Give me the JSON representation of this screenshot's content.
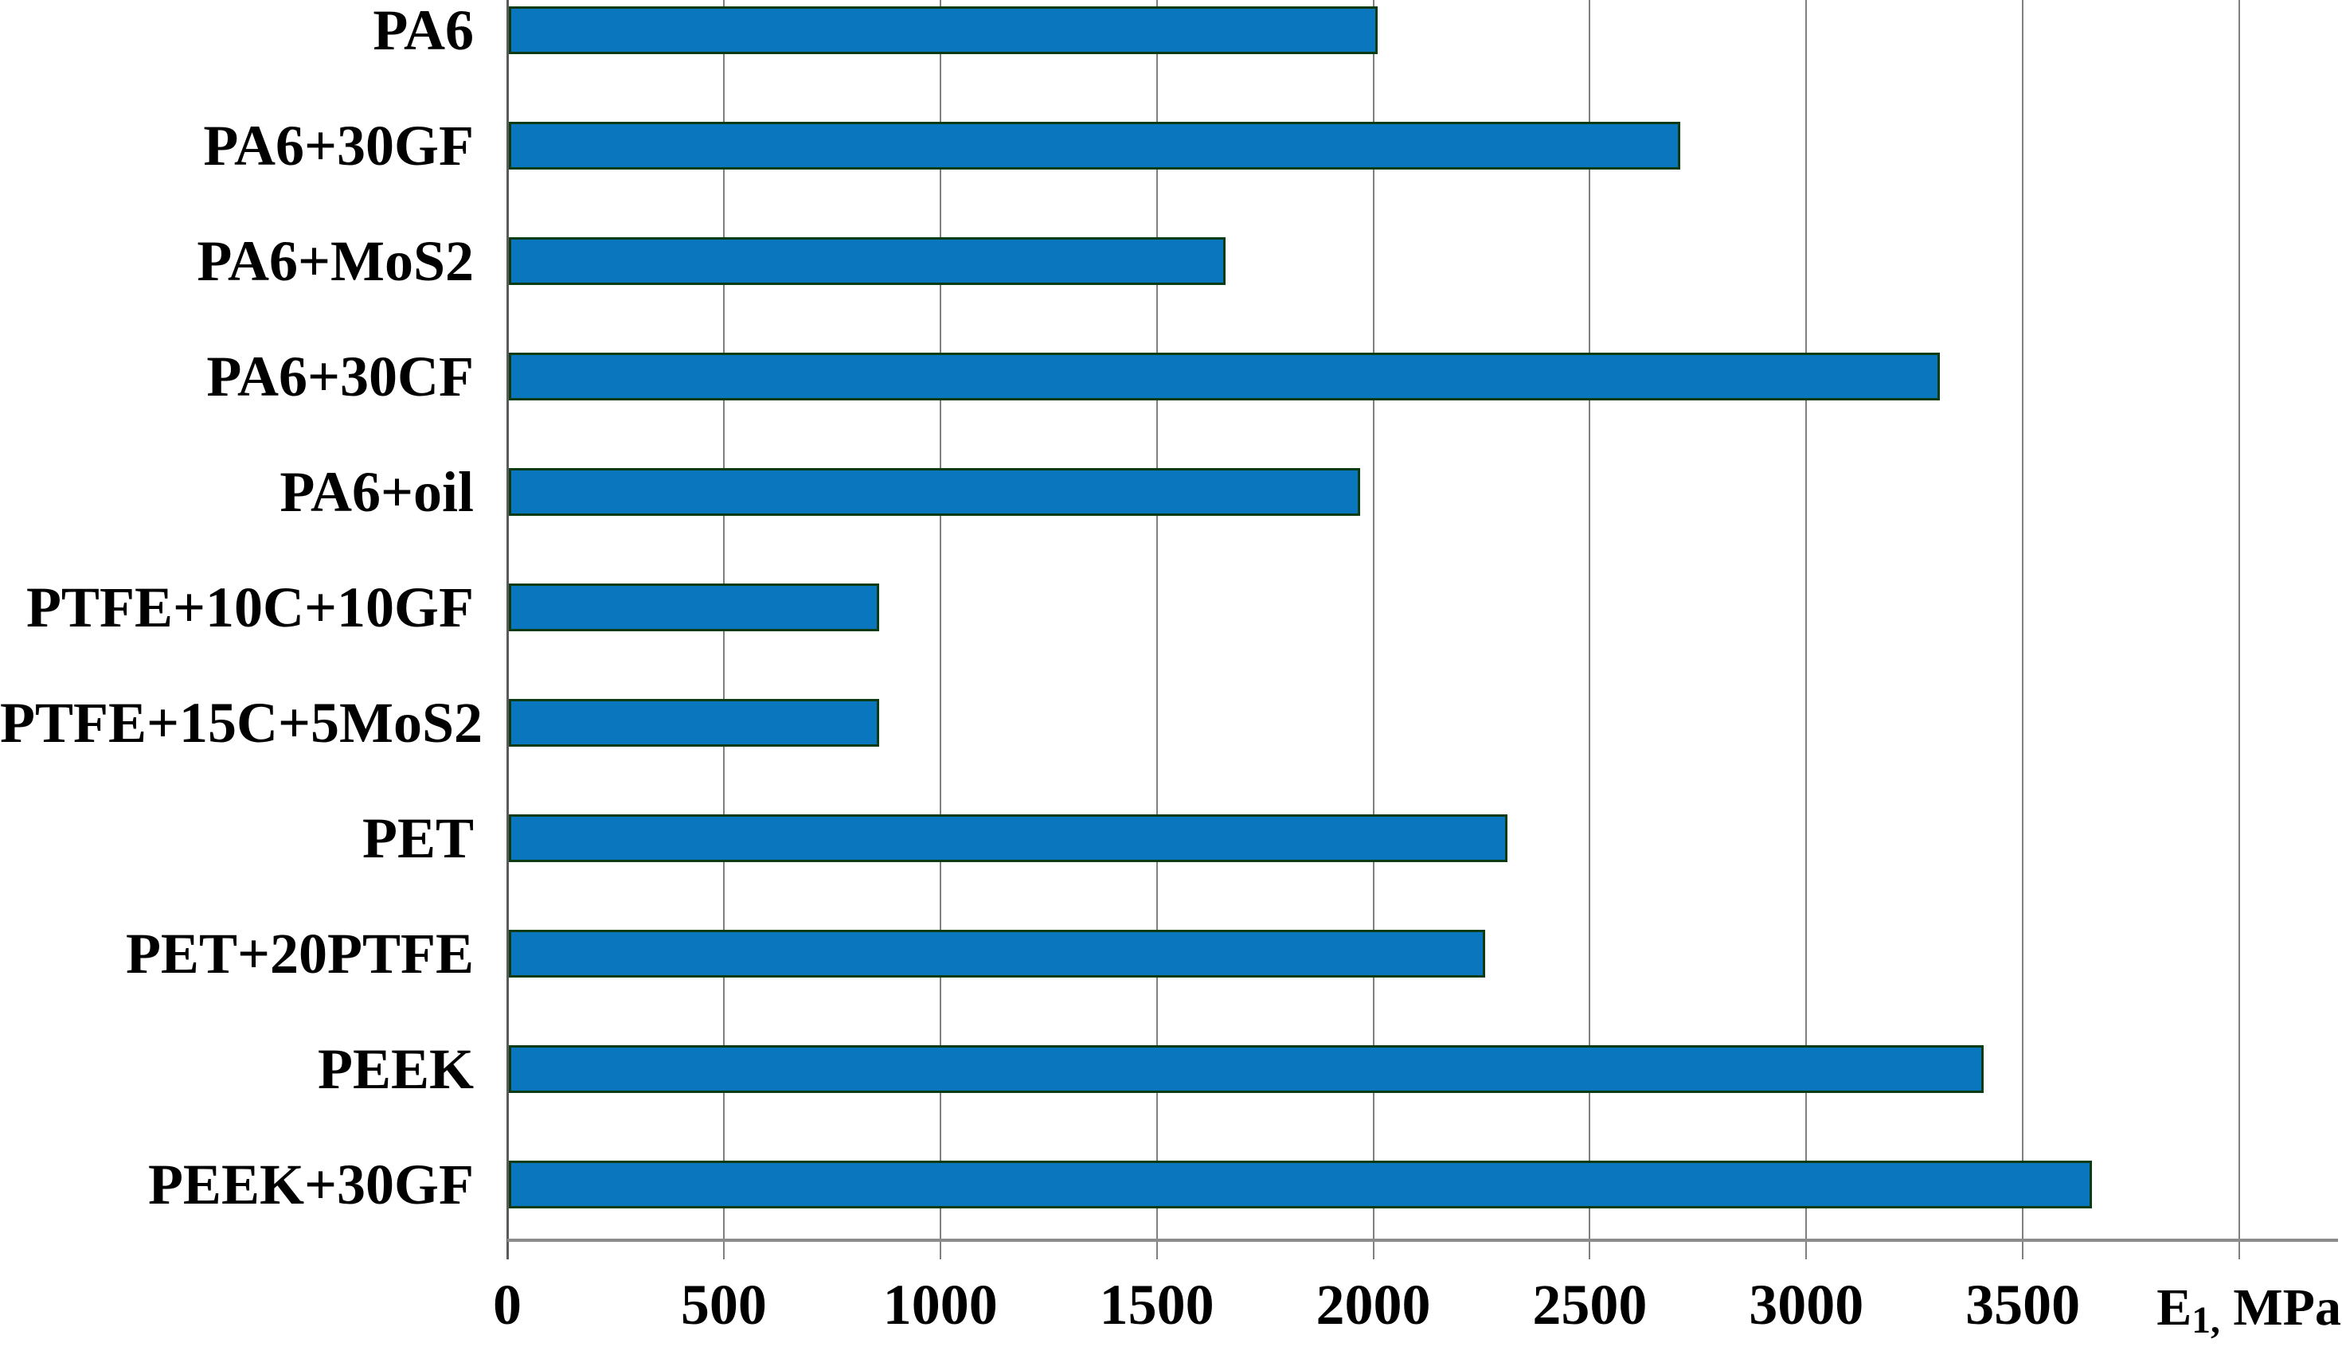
{
  "chart_data": {
    "type": "bar",
    "orientation": "horizontal",
    "title": "",
    "categories": [
      "PA6",
      "PA6+30GF",
      "PA6+MoS2",
      "PA6+30CF",
      "PA6+oil",
      "PTFE+10C+10GF",
      "PTFE+15C+5MoS2",
      "PET",
      "PET+20PTFE",
      "PEEK",
      "PEEK+30GF"
    ],
    "values": [
      2000,
      2700,
      1650,
      3300,
      1960,
      850,
      850,
      2300,
      2250,
      3400,
      3650
    ],
    "xlabel": {
      "base": "E",
      "sub": "1,",
      "rest": " MPa"
    },
    "xlim": [
      0,
      4000
    ],
    "xtick_interval": 500,
    "xtick_labels": [
      "0",
      "500",
      "1000",
      "1500",
      "2000",
      "2500",
      "3000",
      "3500"
    ],
    "grid": true,
    "legend": false,
    "colors": {
      "bar_fill": "#0A76BE",
      "bar_border": "#0C3B14",
      "gridline": "#7F7F7F",
      "zero_axis": "#5A5A5A",
      "baseline": "#8C8C8C",
      "text": "#000000",
      "background": "#FFFFFF"
    }
  }
}
